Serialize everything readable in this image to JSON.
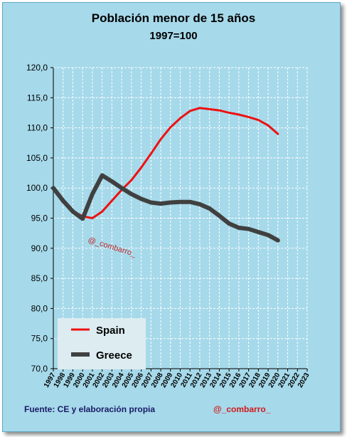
{
  "chart_data": {
    "type": "line",
    "title": "Población  menor de 15 años",
    "subtitle": "1997=100",
    "categories": [
      "1997",
      "1998",
      "1999",
      "2000",
      "2001",
      "2002",
      "2003",
      "2004",
      "2005",
      "2006",
      "2007",
      "2008",
      "2009",
      "2010",
      "2011",
      "2012",
      "2013",
      "2014",
      "2015",
      "2016",
      "2017",
      "2018",
      "2019",
      "2020",
      "2021",
      "2022",
      "2023"
    ],
    "yticks": [
      "70,0",
      "75,0",
      "80,0",
      "85,0",
      "90,0",
      "95,0",
      "100,0",
      "105,0",
      "110,0",
      "115,0",
      "120,0"
    ],
    "ylim": [
      70,
      120
    ],
    "grid": true,
    "legend_position": "bottom-left",
    "series": [
      {
        "name": "Spain",
        "color": "#ee1111",
        "values": [
          100.0,
          97.6,
          96.2,
          95.3,
          95.0,
          96.1,
          97.9,
          99.7,
          101.3,
          103.4,
          105.7,
          108.1,
          110.1,
          111.6,
          112.8,
          113.3,
          113.1,
          112.9,
          112.5,
          112.2,
          111.8,
          111.3,
          110.4,
          109.0,
          null,
          null,
          null
        ]
      },
      {
        "name": "Greece",
        "color": "#404040",
        "values": [
          100.0,
          97.9,
          96.1,
          94.9,
          99.0,
          102.1,
          101.1,
          100.0,
          99.0,
          98.2,
          97.6,
          97.4,
          97.6,
          97.7,
          97.7,
          97.3,
          96.6,
          95.4,
          94.1,
          93.4,
          93.2,
          92.7,
          92.2,
          91.3,
          null,
          null,
          null
        ]
      }
    ],
    "source": "Fuente:  CE y elaboración propia",
    "credit": "@_combarro_",
    "watermark": "@_combarro_"
  }
}
